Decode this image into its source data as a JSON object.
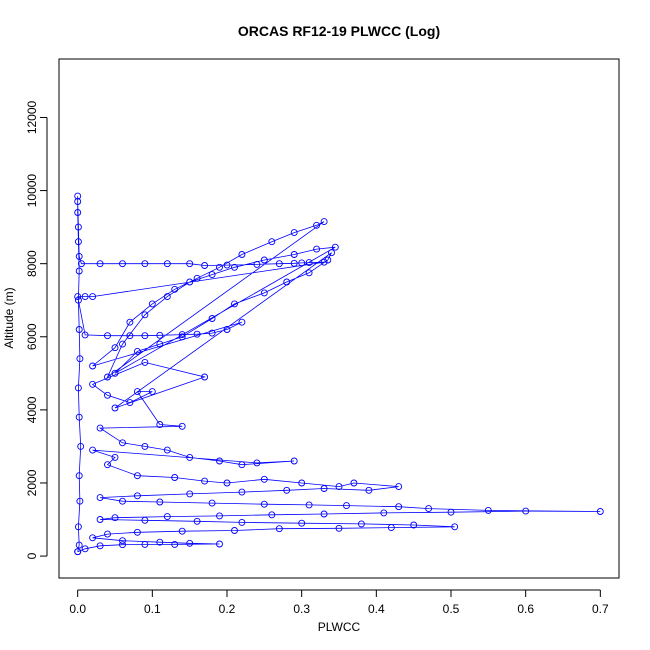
{
  "chart_data": {
    "type": "scatter",
    "title": "ORCAS RF12-19 PLWCC (Log)",
    "xlabel": "PLWCC",
    "ylabel": "Altitude (m)",
    "xlim": [
      -0.025,
      0.725
    ],
    "ylim": [
      -600,
      13600
    ],
    "x_ticks": [
      0.0,
      0.1,
      0.2,
      0.3,
      0.4,
      0.5,
      0.6,
      0.7
    ],
    "y_ticks": [
      0,
      2000,
      4000,
      6000,
      8000,
      10000,
      12000
    ],
    "x_tick_labels": [
      "0.0",
      "0.1",
      "0.2",
      "0.3",
      "0.4",
      "0.5",
      "0.6",
      "0.7"
    ],
    "y_tick_labels": [
      "0",
      "2000",
      "4000",
      "6000",
      "8000",
      "10000",
      "12000"
    ],
    "grid": false,
    "legend": "none",
    "marker": "open-circle",
    "line_connected": true,
    "color": "#0000ff",
    "series": [
      {
        "points": [
          [
            0.0,
            120
          ],
          [
            0.002,
            300
          ],
          [
            0.001,
            800
          ],
          [
            0.003,
            1500
          ],
          [
            0.002,
            2200
          ],
          [
            0.004,
            3000
          ],
          [
            0.002,
            3800
          ],
          [
            0.001,
            4600
          ],
          [
            0.003,
            5400
          ],
          [
            0.002,
            6200
          ],
          [
            0.001,
            7000
          ],
          [
            0.002,
            7800
          ],
          [
            0.001,
            8600
          ],
          [
            0.0,
            9400
          ],
          [
            0.0,
            9850
          ],
          [
            0.0,
            9700
          ],
          [
            0.001,
            9000
          ],
          [
            0.002,
            8200
          ],
          [
            0.005,
            8000
          ],
          [
            0.03,
            8000
          ],
          [
            0.06,
            8000
          ],
          [
            0.09,
            8000
          ],
          [
            0.12,
            8000
          ],
          [
            0.15,
            8000
          ],
          [
            0.17,
            7950
          ],
          [
            0.2,
            7960
          ],
          [
            0.24,
            7980
          ],
          [
            0.27,
            8000
          ],
          [
            0.29,
            8010
          ],
          [
            0.3,
            8020
          ],
          [
            0.31,
            8030
          ],
          [
            0.33,
            8040
          ],
          [
            0.02,
            7100
          ],
          [
            0.01,
            7100
          ],
          [
            0.0,
            7100
          ],
          [
            0.01,
            6050
          ],
          [
            0.04,
            6030
          ],
          [
            0.07,
            6030
          ],
          [
            0.09,
            6030
          ],
          [
            0.11,
            6040
          ],
          [
            0.14,
            6060
          ],
          [
            0.16,
            6070
          ],
          [
            0.18,
            6100
          ],
          [
            0.2,
            6200
          ],
          [
            0.22,
            6400
          ],
          [
            0.02,
            5200
          ],
          [
            0.05,
            5700
          ],
          [
            0.07,
            6400
          ],
          [
            0.1,
            6900
          ],
          [
            0.13,
            7300
          ],
          [
            0.16,
            7600
          ],
          [
            0.19,
            7900
          ],
          [
            0.22,
            8250
          ],
          [
            0.26,
            8600
          ],
          [
            0.29,
            8850
          ],
          [
            0.32,
            9050
          ],
          [
            0.33,
            9150
          ],
          [
            0.04,
            4900
          ],
          [
            0.06,
            5800
          ],
          [
            0.09,
            6600
          ],
          [
            0.12,
            7100
          ],
          [
            0.15,
            7500
          ],
          [
            0.18,
            7700
          ],
          [
            0.21,
            7900
          ],
          [
            0.25,
            8100
          ],
          [
            0.29,
            8250
          ],
          [
            0.32,
            8400
          ],
          [
            0.345,
            8450
          ],
          [
            0.05,
            5000
          ],
          [
            0.08,
            5600
          ],
          [
            0.11,
            5800
          ],
          [
            0.14,
            6000
          ],
          [
            0.18,
            6500
          ],
          [
            0.21,
            6900
          ],
          [
            0.25,
            7200
          ],
          [
            0.28,
            7500
          ],
          [
            0.31,
            7750
          ],
          [
            0.335,
            8100
          ],
          [
            0.34,
            8300
          ],
          [
            0.05,
            4050
          ],
          [
            0.17,
            4900
          ],
          [
            0.09,
            5300
          ],
          [
            0.02,
            4700
          ],
          [
            0.04,
            4400
          ],
          [
            0.07,
            4200
          ],
          [
            0.1,
            4500
          ],
          [
            0.08,
            4500
          ],
          [
            0.11,
            3600
          ],
          [
            0.14,
            3550
          ],
          [
            0.03,
            3500
          ],
          [
            0.06,
            3100
          ],
          [
            0.09,
            3000
          ],
          [
            0.12,
            2900
          ],
          [
            0.15,
            2700
          ],
          [
            0.19,
            2600
          ],
          [
            0.22,
            2500
          ],
          [
            0.29,
            2600
          ],
          [
            0.24,
            2550
          ],
          [
            0.02,
            2900
          ],
          [
            0.05,
            2700
          ],
          [
            0.04,
            2500
          ],
          [
            0.08,
            2200
          ],
          [
            0.13,
            2150
          ],
          [
            0.17,
            2050
          ],
          [
            0.2,
            2000
          ],
          [
            0.25,
            2100
          ],
          [
            0.3,
            2000
          ],
          [
            0.35,
            1900
          ],
          [
            0.37,
            2000
          ],
          [
            0.43,
            1900
          ],
          [
            0.39,
            1800
          ],
          [
            0.33,
            1850
          ],
          [
            0.28,
            1800
          ],
          [
            0.22,
            1750
          ],
          [
            0.15,
            1700
          ],
          [
            0.08,
            1650
          ],
          [
            0.03,
            1600
          ],
          [
            0.06,
            1500
          ],
          [
            0.11,
            1480
          ],
          [
            0.18,
            1450
          ],
          [
            0.25,
            1420
          ],
          [
            0.31,
            1400
          ],
          [
            0.36,
            1380
          ],
          [
            0.43,
            1350
          ],
          [
            0.47,
            1300
          ],
          [
            0.55,
            1250
          ],
          [
            0.7,
            1220
          ],
          [
            0.6,
            1230
          ],
          [
            0.5,
            1200
          ],
          [
            0.41,
            1180
          ],
          [
            0.33,
            1150
          ],
          [
            0.26,
            1130
          ],
          [
            0.19,
            1100
          ],
          [
            0.12,
            1080
          ],
          [
            0.05,
            1050
          ],
          [
            0.03,
            1000
          ],
          [
            0.09,
            980
          ],
          [
            0.16,
            950
          ],
          [
            0.22,
            920
          ],
          [
            0.3,
            900
          ],
          [
            0.38,
            880
          ],
          [
            0.45,
            850
          ],
          [
            0.505,
            800
          ],
          [
            0.42,
            780
          ],
          [
            0.35,
            760
          ],
          [
            0.27,
            750
          ],
          [
            0.21,
            700
          ],
          [
            0.14,
            680
          ],
          [
            0.08,
            650
          ],
          [
            0.04,
            600
          ],
          [
            0.02,
            500
          ],
          [
            0.06,
            420
          ],
          [
            0.11,
            380
          ],
          [
            0.15,
            350
          ],
          [
            0.19,
            330
          ],
          [
            0.13,
            320
          ],
          [
            0.09,
            320
          ],
          [
            0.06,
            310
          ],
          [
            0.03,
            280
          ],
          [
            0.01,
            200
          ],
          [
            0.0,
            120
          ]
        ]
      }
    ]
  }
}
